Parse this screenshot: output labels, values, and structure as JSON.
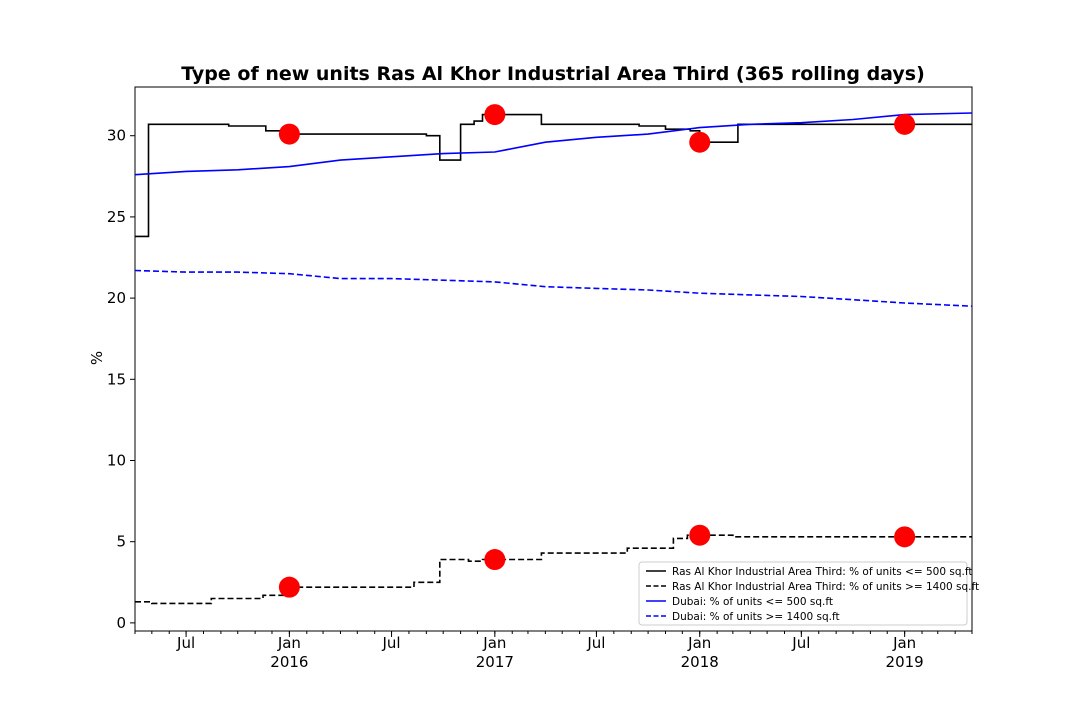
{
  "chart_data": {
    "type": "line",
    "title": "Type of new units Ras Al Khor Industrial Area Third (365 rolling days)",
    "xlabel": "",
    "ylabel": "%",
    "xlim": [
      "2015-04-01",
      "2019-05-01"
    ],
    "ylim": [
      -0.5,
      33
    ],
    "y_ticks": [
      0,
      5,
      10,
      15,
      20,
      25,
      30
    ],
    "x_ticks": [
      {
        "date": "2015-07-01",
        "label": "Jul",
        "sublabel": ""
      },
      {
        "date": "2016-01-01",
        "label": "Jan",
        "sublabel": "2016"
      },
      {
        "date": "2016-07-01",
        "label": "Jul",
        "sublabel": ""
      },
      {
        "date": "2017-01-01",
        "label": "Jan",
        "sublabel": "2017"
      },
      {
        "date": "2017-07-01",
        "label": "Jul",
        "sublabel": ""
      },
      {
        "date": "2018-01-01",
        "label": "Jan",
        "sublabel": "2018"
      },
      {
        "date": "2018-07-01",
        "label": "Jul",
        "sublabel": ""
      },
      {
        "date": "2019-01-01",
        "label": "Jan",
        "sublabel": "2019"
      }
    ],
    "grid": false,
    "legend_position": "lower-right",
    "series": [
      {
        "name": "Ras Al Khor Industrial Area Third: % of units <= 500 sq.ft",
        "color": "#000000",
        "style": "solid",
        "step": true,
        "points": [
          [
            "2015-04-01",
            23.8
          ],
          [
            "2015-04-25",
            30.7
          ],
          [
            "2015-08-01",
            30.7
          ],
          [
            "2015-09-15",
            30.6
          ],
          [
            "2015-11-20",
            30.3
          ],
          [
            "2016-01-01",
            30.1
          ],
          [
            "2016-09-01",
            30.0
          ],
          [
            "2016-09-25",
            28.5
          ],
          [
            "2016-11-01",
            30.7
          ],
          [
            "2016-11-25",
            30.9
          ],
          [
            "2016-12-10",
            31.3
          ],
          [
            "2017-03-25",
            30.7
          ],
          [
            "2017-09-15",
            30.6
          ],
          [
            "2017-11-01",
            30.4
          ],
          [
            "2017-12-15",
            30.3
          ],
          [
            "2018-01-01",
            29.6
          ],
          [
            "2018-03-10",
            30.7
          ],
          [
            "2019-05-01",
            30.7
          ]
        ],
        "markers": [
          [
            "2016-01-01",
            30.1
          ],
          [
            "2017-01-01",
            31.3
          ],
          [
            "2018-01-01",
            29.6
          ],
          [
            "2019-01-01",
            30.7
          ]
        ]
      },
      {
        "name": "Ras Al Khor Industrial Area Third: % of units >= 1400 sq.ft",
        "color": "#000000",
        "style": "dashed",
        "step": true,
        "points": [
          [
            "2015-04-01",
            1.3
          ],
          [
            "2015-05-01",
            1.2
          ],
          [
            "2015-08-15",
            1.5
          ],
          [
            "2015-11-15",
            1.7
          ],
          [
            "2016-01-01",
            2.2
          ],
          [
            "2016-08-10",
            2.5
          ],
          [
            "2016-09-25",
            3.9
          ],
          [
            "2016-11-15",
            3.8
          ],
          [
            "2016-12-10",
            3.9
          ],
          [
            "2017-03-25",
            4.3
          ],
          [
            "2017-08-25",
            4.6
          ],
          [
            "2017-11-15",
            5.2
          ],
          [
            "2017-12-10",
            5.4
          ],
          [
            "2018-03-01",
            5.3
          ],
          [
            "2019-05-01",
            5.3
          ]
        ],
        "markers": [
          [
            "2016-01-01",
            2.2
          ],
          [
            "2017-01-01",
            3.9
          ],
          [
            "2018-01-01",
            5.4
          ],
          [
            "2019-01-01",
            5.3
          ]
        ]
      },
      {
        "name": "Dubai: % of units <= 500 sq.ft",
        "color": "#0000ff",
        "style": "solid",
        "step": false,
        "points": [
          [
            "2015-04-01",
            27.6
          ],
          [
            "2015-07-01",
            27.8
          ],
          [
            "2015-10-01",
            27.9
          ],
          [
            "2016-01-01",
            28.1
          ],
          [
            "2016-04-01",
            28.5
          ],
          [
            "2016-07-01",
            28.7
          ],
          [
            "2016-10-01",
            28.9
          ],
          [
            "2017-01-01",
            29.0
          ],
          [
            "2017-04-01",
            29.6
          ],
          [
            "2017-07-01",
            29.9
          ],
          [
            "2017-10-01",
            30.1
          ],
          [
            "2018-01-01",
            30.5
          ],
          [
            "2018-04-01",
            30.7
          ],
          [
            "2018-07-01",
            30.8
          ],
          [
            "2018-10-01",
            31.0
          ],
          [
            "2019-01-01",
            31.3
          ],
          [
            "2019-05-01",
            31.4
          ]
        ]
      },
      {
        "name": "Dubai: % of units >= 1400 sq.ft",
        "color": "#0000ff",
        "style": "dashed",
        "step": false,
        "points": [
          [
            "2015-04-01",
            21.7
          ],
          [
            "2015-07-01",
            21.6
          ],
          [
            "2015-10-01",
            21.6
          ],
          [
            "2016-01-01",
            21.5
          ],
          [
            "2016-04-01",
            21.2
          ],
          [
            "2016-07-01",
            21.2
          ],
          [
            "2016-10-01",
            21.1
          ],
          [
            "2017-01-01",
            21.0
          ],
          [
            "2017-04-01",
            20.7
          ],
          [
            "2017-07-01",
            20.6
          ],
          [
            "2017-10-01",
            20.5
          ],
          [
            "2018-01-01",
            20.3
          ],
          [
            "2018-04-01",
            20.2
          ],
          [
            "2018-07-01",
            20.1
          ],
          [
            "2018-10-01",
            19.9
          ],
          [
            "2019-01-01",
            19.7
          ],
          [
            "2019-05-01",
            19.5
          ]
        ]
      }
    ],
    "marker_color": "#ff0000"
  }
}
